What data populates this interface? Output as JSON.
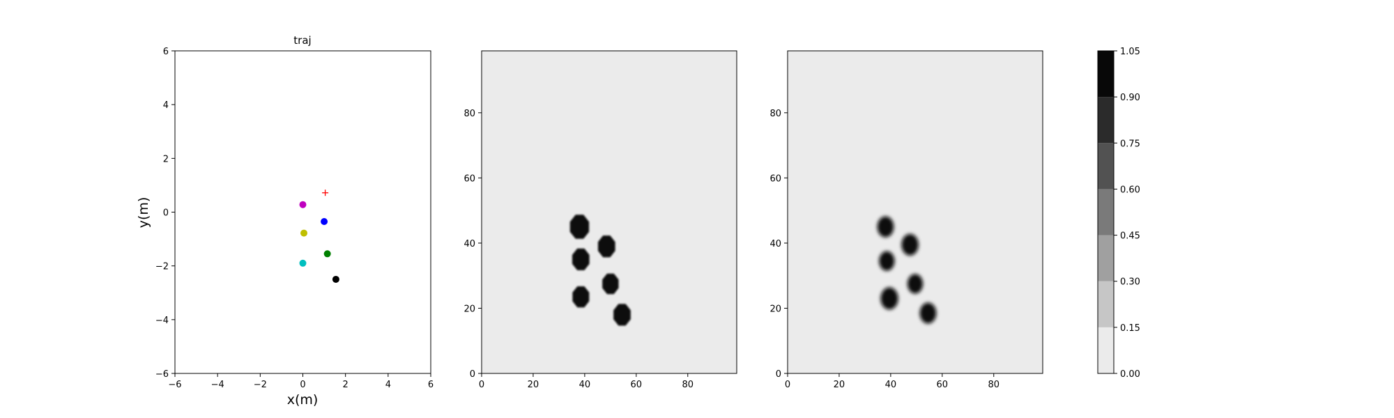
{
  "chart_data": [
    {
      "type": "scatter",
      "title": "traj",
      "xlabel": "x(m)",
      "ylabel": "y(m)",
      "xlim": [
        -6,
        6
      ],
      "ylim": [
        -6,
        6
      ],
      "xticks": [
        "−6",
        "−4",
        "−2",
        "0",
        "2",
        "4",
        "6"
      ],
      "yticks": [
        "−6",
        "−4",
        "−2",
        "0",
        "2",
        "4",
        "6"
      ],
      "grid": false,
      "points": [
        {
          "x": 0.0,
          "y": 0.28,
          "color": "#bf00bf",
          "marker": "circle"
        },
        {
          "x": 1.0,
          "y": -0.35,
          "color": "#0000ff",
          "marker": "circle"
        },
        {
          "x": 0.05,
          "y": -0.78,
          "color": "#bfbf00",
          "marker": "circle"
        },
        {
          "x": 1.15,
          "y": -1.55,
          "color": "#008000",
          "marker": "circle"
        },
        {
          "x": 0.0,
          "y": -1.9,
          "color": "#00bfbf",
          "marker": "circle"
        },
        {
          "x": 1.55,
          "y": -2.5,
          "color": "#000000",
          "marker": "circle"
        },
        {
          "x": 1.05,
          "y": 0.72,
          "color": "#ff0000",
          "marker": "plus"
        }
      ]
    },
    {
      "type": "heatmap",
      "title": "",
      "xlim": [
        0,
        99
      ],
      "ylim": [
        0,
        99
      ],
      "xticks": [
        "0",
        "20",
        "40",
        "60",
        "80"
      ],
      "yticks": [
        "0",
        "20",
        "40",
        "60",
        "80"
      ],
      "background_value": 0.0,
      "blobs": [
        {
          "x": 38,
          "y": 45,
          "r": 4.0,
          "value": 1.0
        },
        {
          "x": 48.5,
          "y": 39,
          "r": 3.6,
          "value": 1.0
        },
        {
          "x": 38.5,
          "y": 35,
          "r": 3.6,
          "value": 1.0
        },
        {
          "x": 50,
          "y": 27.5,
          "r": 3.4,
          "value": 1.0
        },
        {
          "x": 38.5,
          "y": 23.5,
          "r": 3.5,
          "value": 1.0
        },
        {
          "x": 54.5,
          "y": 18,
          "r": 3.6,
          "value": 1.0
        }
      ]
    },
    {
      "type": "heatmap",
      "title": "",
      "xlim": [
        0,
        99
      ],
      "ylim": [
        0,
        99
      ],
      "xticks": [
        "0",
        "20",
        "40",
        "60",
        "80"
      ],
      "yticks": [
        "0",
        "20",
        "40",
        "60",
        "80"
      ],
      "background_value": 0.0,
      "blobs": [
        {
          "x": 38,
          "y": 45,
          "r": 3.2,
          "value": 1.0
        },
        {
          "x": 47.5,
          "y": 39.5,
          "r": 3.3,
          "value": 1.0
        },
        {
          "x": 38.5,
          "y": 34.5,
          "r": 3.0,
          "value": 1.0
        },
        {
          "x": 49.5,
          "y": 27.5,
          "r": 3.0,
          "value": 0.95
        },
        {
          "x": 39.5,
          "y": 23,
          "r": 3.4,
          "value": 1.0
        },
        {
          "x": 54.5,
          "y": 18.5,
          "r": 3.2,
          "value": 1.0
        }
      ]
    },
    {
      "type": "colorbar",
      "range": [
        0.0,
        1.05
      ],
      "levels": [
        0.0,
        0.15,
        0.3,
        0.45,
        0.6,
        0.75,
        0.9,
        1.05
      ],
      "tick_labels": [
        "0.00",
        "0.15",
        "0.30",
        "0.45",
        "0.60",
        "0.75",
        "0.90",
        "1.05"
      ],
      "colors": [
        "#ebebeb",
        "#c6c6c6",
        "#a0a0a0",
        "#7a7a7a",
        "#525252",
        "#2b2b2b",
        "#080808"
      ]
    }
  ]
}
